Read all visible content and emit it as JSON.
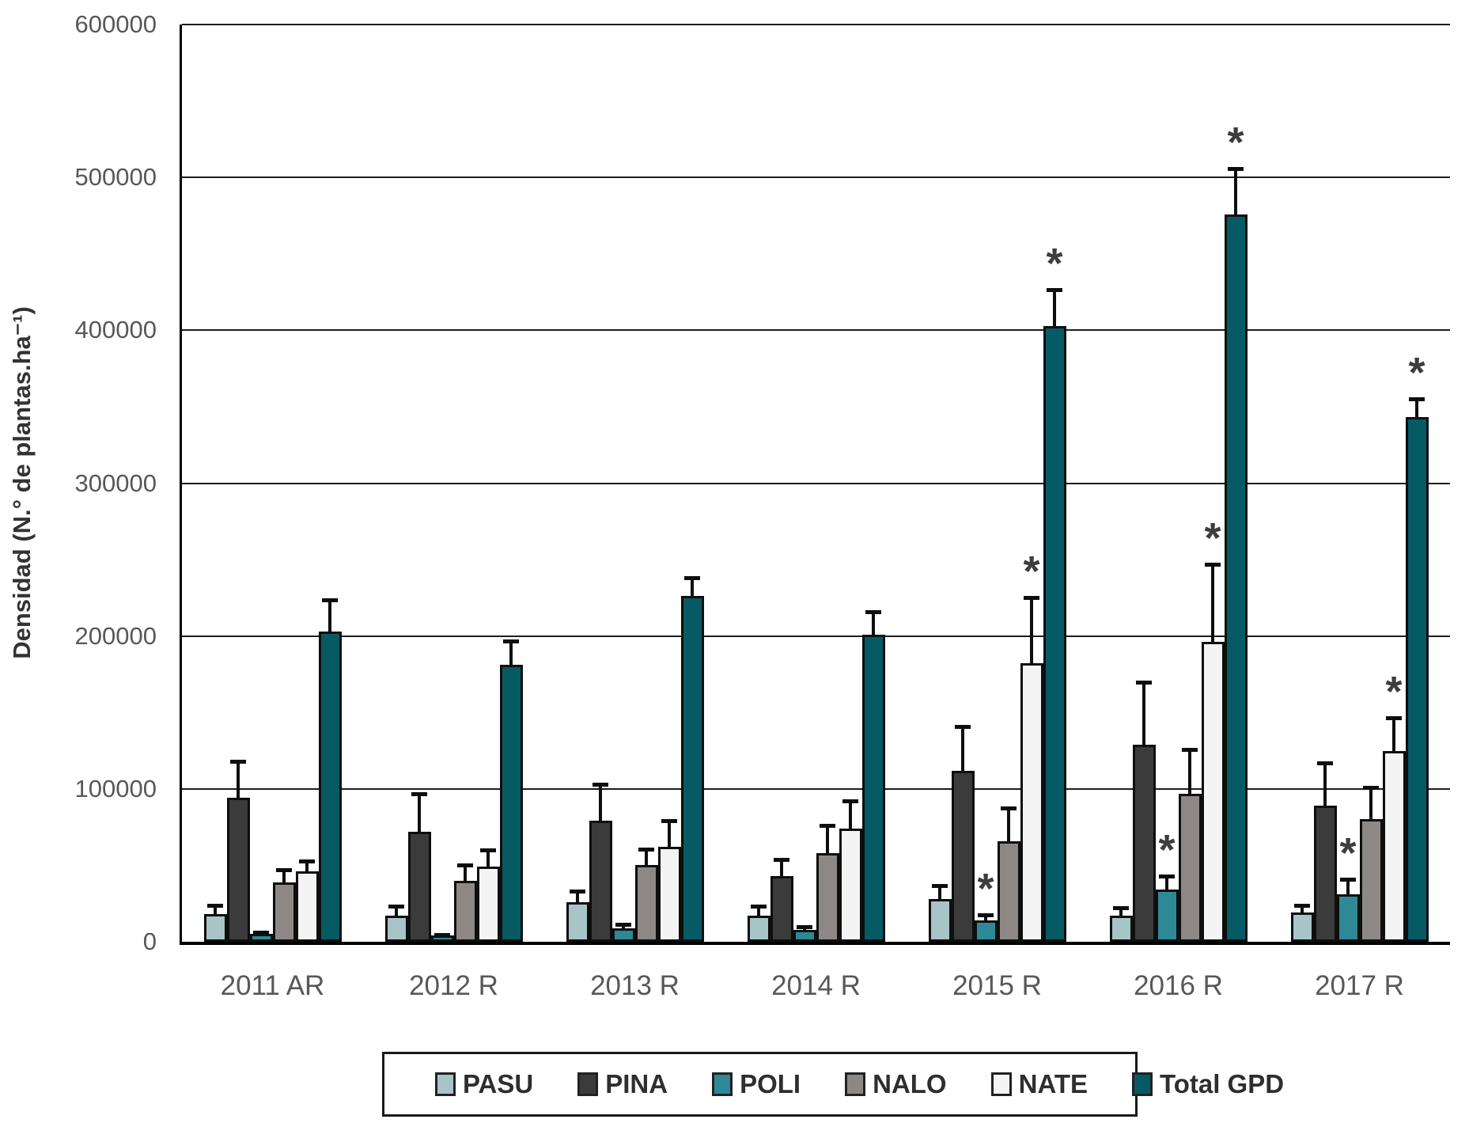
{
  "figure": {
    "y_axis_title": "Densidad (N.° de plantas.ha⁻¹)",
    "significance_marker": "*"
  },
  "chart_data": {
    "type": "bar",
    "title": "",
    "xlabel": "",
    "ylabel": "Densidad (N.° de plantas.ha⁻¹)",
    "ylim": [
      0,
      600000
    ],
    "yticks": [
      0,
      100000,
      200000,
      300000,
      400000,
      500000,
      600000
    ],
    "grid": true,
    "legend_position": "bottom",
    "error_bars": true,
    "categories": [
      "2011 AR",
      "2012 R",
      "2013 R",
      "2014 R",
      "2015 R",
      "2016 R",
      "2017 R"
    ],
    "series": [
      {
        "name": "PASU",
        "color": "#a7c4c7",
        "values": [
          18000,
          17000,
          26000,
          17000,
          28000,
          17000,
          19000
        ],
        "errors": [
          6500,
          7000,
          8500,
          7500,
          10000,
          6000,
          5500
        ],
        "significant": [
          false,
          false,
          false,
          false,
          false,
          false,
          false
        ]
      },
      {
        "name": "PINA",
        "color": "#3b3b3b",
        "values": [
          94000,
          72000,
          79000,
          43000,
          112000,
          129000,
          89000
        ],
        "errors": [
          25000,
          26000,
          25000,
          12000,
          30000,
          42000,
          29000
        ],
        "significant": [
          false,
          false,
          false,
          false,
          false,
          false,
          false
        ]
      },
      {
        "name": "POLI",
        "color": "#2e8996",
        "values": [
          5000,
          4000,
          9000,
          8000,
          14000,
          34000,
          31000
        ],
        "errors": [
          2000,
          1500,
          3500,
          3000,
          4500,
          10000,
          11000
        ],
        "significant": [
          false,
          false,
          false,
          false,
          true,
          true,
          true
        ]
      },
      {
        "name": "NALO",
        "color": "#8d8886",
        "values": [
          39000,
          40000,
          50000,
          58000,
          66000,
          97000,
          80000
        ],
        "errors": [
          9500,
          11500,
          11500,
          19000,
          23000,
          30000,
          22000
        ],
        "significant": [
          false,
          false,
          false,
          false,
          false,
          false,
          false
        ]
      },
      {
        "name": "NATE",
        "color": "#f4f4f4",
        "values": [
          46000,
          49000,
          62000,
          74000,
          182000,
          196000,
          125000
        ],
        "errors": [
          8000,
          12000,
          18000,
          19000,
          44000,
          52000,
          23000
        ],
        "significant": [
          false,
          false,
          false,
          false,
          true,
          true,
          true
        ]
      },
      {
        "name": "Total GPD",
        "color": "#065a63",
        "values": [
          203000,
          181000,
          226000,
          201000,
          403000,
          476000,
          343000
        ],
        "errors": [
          22000,
          16500,
          13000,
          16000,
          25000,
          31000,
          13000
        ],
        "significant": [
          false,
          false,
          false,
          false,
          true,
          true,
          true
        ]
      }
    ]
  }
}
